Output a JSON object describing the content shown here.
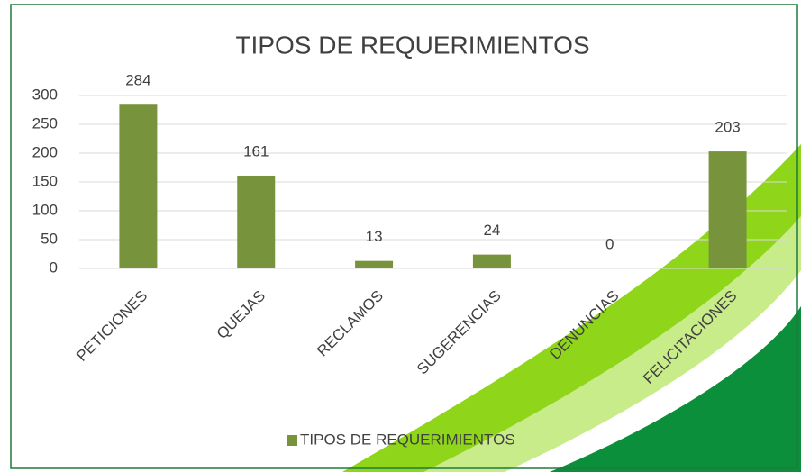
{
  "chart_data": {
    "type": "bar",
    "title": "TIPOS DE REQUERIMIENTOS",
    "categories": [
      "PETICIONES",
      "QUEJAS",
      "RECLAMOS",
      "SUGERENCIAS",
      "DENUNCIAS",
      "FELICITACIONES"
    ],
    "series": [
      {
        "name": "TIPOS DE REQUERIMIENTOS",
        "color": "#77933c",
        "values": [
          284,
          161,
          13,
          24,
          0,
          203
        ]
      }
    ],
    "ylim": [
      0,
      300
    ],
    "yticks": [
      0,
      50,
      100,
      150,
      200,
      250,
      300
    ],
    "grid": true,
    "legend": "bottom"
  }
}
